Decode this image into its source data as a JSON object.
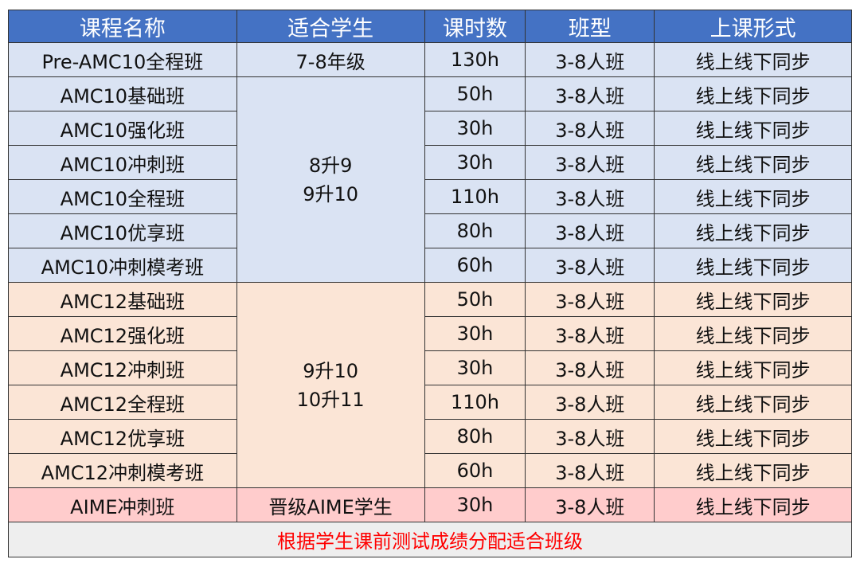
{
  "headers": [
    "课程名称",
    "适合学生",
    "课时数",
    "班型",
    "上课形式"
  ],
  "pre": {
    "name": "Pre-AMC10全程班",
    "students": "7-8年级",
    "hours": "130h",
    "size": "3-8人班",
    "mode": "线上线下同步"
  },
  "amc10": {
    "students": [
      "8升9",
      "9升10"
    ],
    "rows": [
      {
        "name": "AMC10基础班",
        "hours": "50h",
        "size": "3-8人班",
        "mode": "线上线下同步"
      },
      {
        "name": "AMC10强化班",
        "hours": "30h",
        "size": "3-8人班",
        "mode": "线上线下同步"
      },
      {
        "name": "AMC10冲刺班",
        "hours": "30h",
        "size": "3-8人班",
        "mode": "线上线下同步"
      },
      {
        "name": "AMC10全程班",
        "hours": "110h",
        "size": "3-8人班",
        "mode": "线上线下同步"
      },
      {
        "name": "AMC10优享班",
        "hours": "80h",
        "size": "3-8人班",
        "mode": "线上线下同步"
      },
      {
        "name": "AMC10冲刺模考班",
        "hours": "60h",
        "size": "3-8人班",
        "mode": "线上线下同步"
      }
    ]
  },
  "amc12": {
    "students": [
      "9升10",
      "10升11"
    ],
    "rows": [
      {
        "name": "AMC12基础班",
        "hours": "50h",
        "size": "3-8人班",
        "mode": "线上线下同步"
      },
      {
        "name": "AMC12强化班",
        "hours": "30h",
        "size": "3-8人班",
        "mode": "线上线下同步"
      },
      {
        "name": "AMC12冲刺班",
        "hours": "30h",
        "size": "3-8人班",
        "mode": "线上线下同步"
      },
      {
        "name": "AMC12全程班",
        "hours": "110h",
        "size": "3-8人班",
        "mode": "线上线下同步"
      },
      {
        "name": "AMC12优享班",
        "hours": "80h",
        "size": "3-8人班",
        "mode": "线上线下同步"
      },
      {
        "name": "AMC12冲刺模考班",
        "hours": "60h",
        "size": "3-8人班",
        "mode": "线上线下同步"
      }
    ]
  },
  "aime": {
    "name": "AIME冲刺班",
    "students": "晋级AIME学生",
    "hours": "30h",
    "size": "3-8人班",
    "mode": "线上线下同步"
  },
  "footer": "根据学生课前测试成绩分配适合班级",
  "colors": {
    "header": "#4472c4",
    "amc10": "#dae3f3",
    "amc12": "#fbe5d6",
    "aime": "#ffcccc",
    "footer_text": "#ff0000"
  }
}
